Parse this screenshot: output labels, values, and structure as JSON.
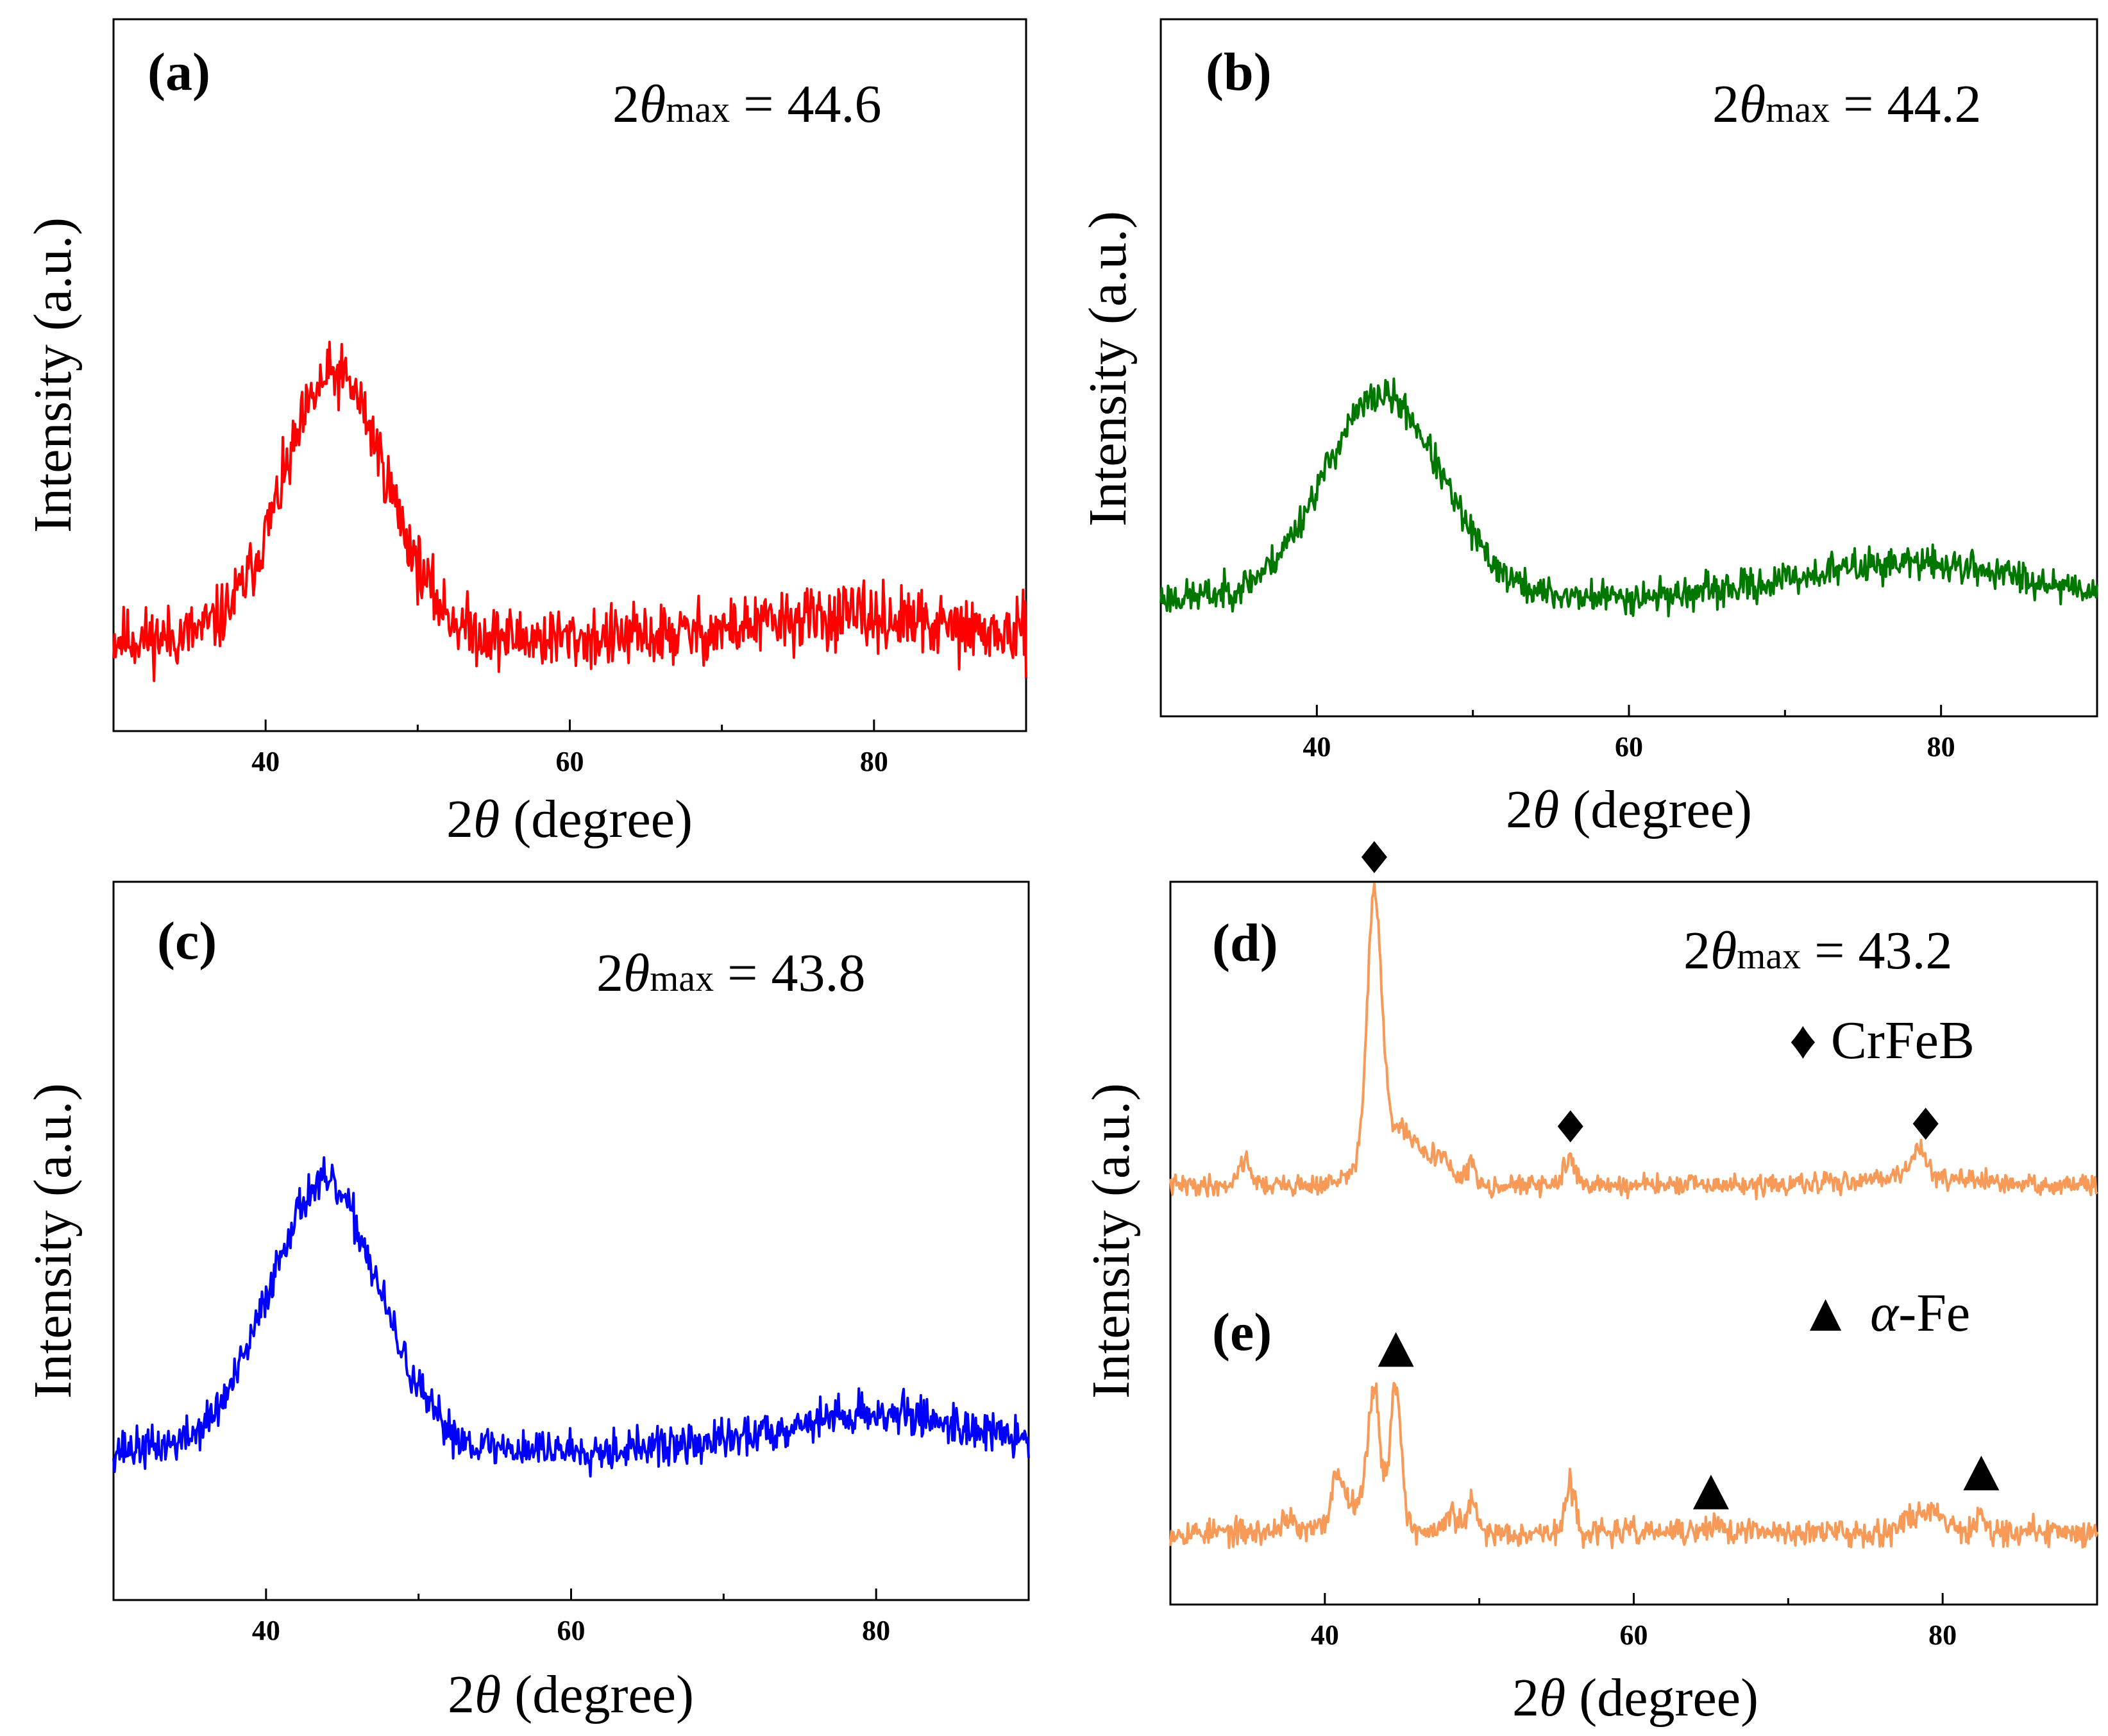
{
  "colors": {
    "a": "#ff0000",
    "b": "#007800",
    "c": "#0000ff",
    "de": "#f79a58"
  },
  "chart_data": [
    {
      "id": "a",
      "type": "line",
      "panel_label_open": "(",
      "panel_label_letter": "a",
      "panel_label_close": ")",
      "annotation": {
        "prefix": "2",
        "theta": "θ",
        "sub": "max",
        "value": " = 44.6"
      },
      "xlabel": {
        "two": "2",
        "theta": "θ",
        "rest": " (degree)"
      },
      "ylabel": "Intensity (a.u.)",
      "xlim": [
        30,
        90
      ],
      "ylim": [
        0,
        1
      ],
      "xticks": [
        40,
        60,
        80
      ],
      "xtick_labels": [
        "40",
        "60",
        "80"
      ],
      "series": [
        {
          "name": "a",
          "peaks": [
            [
              44.6,
              0.37,
              3.4
            ]
          ],
          "baseline": 0.13,
          "noise": 0.022,
          "hump": [
            78,
            0.03,
            6
          ],
          "seed": 11
        }
      ]
    },
    {
      "id": "b",
      "type": "line",
      "panel_label_open": "(",
      "panel_label_letter": "b",
      "panel_label_close": ")",
      "annotation": {
        "prefix": "2",
        "theta": "θ",
        "sub": "max",
        "value": " = 44.2"
      },
      "xlabel": {
        "two": "2",
        "theta": "θ",
        "rest": " (degree)"
      },
      "ylabel": "Intensity (a.u.)",
      "xlim": [
        30,
        90
      ],
      "ylim": [
        0,
        1
      ],
      "xticks": [
        40,
        60,
        80
      ],
      "xtick_labels": [
        "40",
        "60",
        "80"
      ],
      "series": [
        {
          "name": "b",
          "peaks": [
            [
              44.2,
              0.29,
              3.8
            ]
          ],
          "baseline": 0.17,
          "noise": 0.012,
          "hump": [
            78,
            0.05,
            7
          ],
          "seed": 23
        }
      ]
    },
    {
      "id": "c",
      "type": "line",
      "panel_label_open": "(",
      "panel_label_letter": "c",
      "panel_label_close": ")",
      "annotation": {
        "prefix": "2",
        "theta": "θ",
        "sub": "max",
        "value": " = 43.8"
      },
      "xlabel": {
        "two": "2",
        "theta": "θ",
        "rest": " (degree)"
      },
      "ylabel": "Intensity (a.u.)",
      "xlim": [
        30,
        90
      ],
      "ylim": [
        0,
        1
      ],
      "xticks": [
        40,
        60,
        80
      ],
      "xtick_labels": [
        "40",
        "60",
        "80"
      ],
      "series": [
        {
          "name": "c",
          "peaks": [
            [
              43.8,
              0.37,
              3.6
            ]
          ],
          "baseline": 0.21,
          "noise": 0.014,
          "hump": [
            80,
            0.05,
            6
          ],
          "seed": 37
        }
      ]
    },
    {
      "id": "de",
      "type": "line",
      "panel_label_d_open": "(",
      "panel_label_d_letter": "d",
      "panel_label_d_close": ")",
      "panel_label_e_open": "(",
      "panel_label_e_letter": "e",
      "panel_label_e_close": ")",
      "annotation": {
        "prefix": "2",
        "theta": "θ",
        "sub": "max",
        "value": " = 43.2"
      },
      "legend": [
        {
          "symbol": "♦",
          "label": "CrFeB"
        },
        {
          "symbol": "▲",
          "label_italic": "α",
          "label_rest": "-Fe"
        }
      ],
      "xlabel": {
        "two": "2",
        "theta": "θ",
        "rest": " (degree)"
      },
      "ylabel": "Intensity (a.u.)",
      "xlim": [
        30,
        90
      ],
      "ylim": [
        0,
        1
      ],
      "xticks": [
        40,
        60,
        80
      ],
      "xtick_labels": [
        "40",
        "60",
        "80"
      ],
      "series": [
        {
          "name": "d",
          "baseline": 0.58,
          "noise": 0.007,
          "peaks": [
            [
              43.2,
              0.35,
              0.45
            ],
            [
              44.5,
              0.08,
              1.6
            ],
            [
              34.8,
              0.035,
              0.4
            ],
            [
              47.5,
              0.03,
              0.6
            ],
            [
              49.5,
              0.03,
              0.3
            ],
            [
              55.9,
              0.035,
              0.4
            ],
            [
              78.5,
              0.04,
              0.4
            ],
            [
              78,
              0.015,
              3
            ]
          ],
          "markers_x": [
            43.2,
            55.9,
            78.9
          ],
          "marker": "diamond",
          "seed": 41
        },
        {
          "name": "e",
          "baseline": 0.1,
          "noise": 0.009,
          "peaks": [
            [
              43.2,
              0.16,
              0.35
            ],
            [
              44.6,
              0.19,
              0.35
            ],
            [
              40.8,
              0.06,
              0.35
            ],
            [
              37.5,
              0.02,
              0.4
            ],
            [
              49.5,
              0.04,
              0.3
            ],
            [
              55.9,
              0.065,
              0.3
            ],
            [
              48.2,
              0.025,
              0.4
            ],
            [
              82.5,
              0.035,
              0.25
            ],
            [
              79,
              0.03,
              1.2
            ],
            [
              65.3,
              0.015,
              0.3
            ],
            [
              42.5,
              0.05,
              1.4
            ]
          ],
          "markers_x": [
            44.6,
            65.0,
            82.5
          ],
          "marker": "triangle",
          "seed": 53
        }
      ]
    }
  ]
}
